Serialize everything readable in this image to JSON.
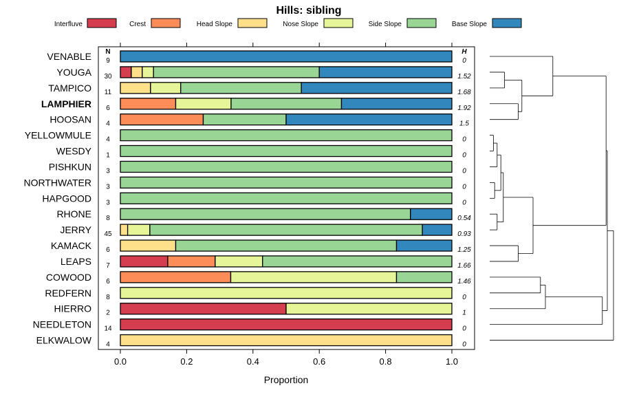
{
  "chart_data": {
    "type": "bar",
    "orientation": "horizontal",
    "stacked": true,
    "title": "Hills: sibling",
    "xlabel": "Proportion",
    "xlim": [
      0,
      1
    ],
    "xticks": [
      "0.0",
      "0.2",
      "0.4",
      "0.6",
      "0.8",
      "1.0"
    ],
    "xtick_values": [
      0,
      0.2,
      0.4,
      0.6,
      0.8,
      1.0
    ],
    "n_header": "N",
    "h_header": "H",
    "legend": [
      {
        "name": "Interfluve",
        "color": "#d53e4f"
      },
      {
        "name": "Crest",
        "color": "#fc8d59"
      },
      {
        "name": "Head Slope",
        "color": "#fee08b"
      },
      {
        "name": "Nose Slope",
        "color": "#e6f598"
      },
      {
        "name": "Side Slope",
        "color": "#99d594"
      },
      {
        "name": "Base Slope",
        "color": "#3288bd"
      }
    ],
    "highlight": "LAMPHIER",
    "rows": [
      {
        "label": "VENABLE",
        "n": "9",
        "h": "0",
        "values": [
          0,
          0,
          0,
          0,
          0,
          1
        ]
      },
      {
        "label": "YOUGA",
        "n": "30",
        "h": "1.52",
        "values": [
          0.033,
          0,
          0.033,
          0.034,
          0.5,
          0.4
        ]
      },
      {
        "label": "TAMPICO",
        "n": "11",
        "h": "1.68",
        "values": [
          0,
          0,
          0.091,
          0.091,
          0.364,
          0.454
        ]
      },
      {
        "label": "LAMPHIER",
        "n": "6",
        "h": "1.92",
        "values": [
          0,
          0.167,
          0,
          0.167,
          0.333,
          0.333
        ]
      },
      {
        "label": "HOOSAN",
        "n": "4",
        "h": "1.5",
        "values": [
          0,
          0.25,
          0,
          0,
          0.25,
          0.5
        ]
      },
      {
        "label": "YELLOWMULE",
        "n": "4",
        "h": "0",
        "values": [
          0,
          0,
          0,
          0,
          1,
          0
        ]
      },
      {
        "label": "WESDY",
        "n": "1",
        "h": "0",
        "values": [
          0,
          0,
          0,
          0,
          1,
          0
        ]
      },
      {
        "label": "PISHKUN",
        "n": "3",
        "h": "0",
        "values": [
          0,
          0,
          0,
          0,
          1,
          0
        ]
      },
      {
        "label": "NORTHWATER",
        "n": "3",
        "h": "0",
        "values": [
          0,
          0,
          0,
          0,
          1,
          0
        ]
      },
      {
        "label": "HAPGOOD",
        "n": "3",
        "h": "0",
        "values": [
          0,
          0,
          0,
          0,
          1,
          0
        ]
      },
      {
        "label": "RHONE",
        "n": "8",
        "h": "0.54",
        "values": [
          0,
          0,
          0,
          0,
          0.875,
          0.125
        ]
      },
      {
        "label": "JERRY",
        "n": "45",
        "h": "0.93",
        "values": [
          0,
          0,
          0.022,
          0.067,
          0.822,
          0.089
        ]
      },
      {
        "label": "KAMACK",
        "n": "6",
        "h": "1.25",
        "values": [
          0,
          0,
          0.167,
          0,
          0.666,
          0.167
        ]
      },
      {
        "label": "LEAPS",
        "n": "7",
        "h": "1.66",
        "values": [
          0.143,
          0.143,
          0,
          0.143,
          0.571,
          0
        ]
      },
      {
        "label": "COWOOD",
        "n": "6",
        "h": "1.46",
        "values": [
          0,
          0.333,
          0,
          0.5,
          0.167,
          0
        ]
      },
      {
        "label": "REDFERN",
        "n": "8",
        "h": "0",
        "values": [
          0,
          0,
          0,
          1,
          0,
          0
        ]
      },
      {
        "label": "HIERRO",
        "n": "2",
        "h": "1",
        "values": [
          0.5,
          0,
          0,
          0.5,
          0,
          0
        ]
      },
      {
        "label": "NEEDLETON",
        "n": "14",
        "h": "0",
        "values": [
          1,
          0,
          0,
          0,
          0,
          0
        ]
      },
      {
        "label": "ELKWALOW",
        "n": "4",
        "h": "0",
        "values": [
          0,
          0,
          1,
          0,
          0,
          0
        ]
      }
    ],
    "dendrogram": {
      "type": "hierarchical-clustering",
      "leaves_in_order": [
        "VENABLE",
        "YOUGA",
        "TAMPICO",
        "LAMPHIER",
        "HOOSAN",
        "YELLOWMULE",
        "WESDY",
        "PISHKUN",
        "NORTHWATER",
        "HAPGOOD",
        "RHONE",
        "JERRY",
        "KAMACK",
        "LEAPS",
        "COWOOD",
        "REDFERN",
        "HIERRO",
        "NEEDLETON",
        "ELKWALOW"
      ],
      "merges": [
        {
          "a": "YOUGA",
          "b": "TAMPICO",
          "height": 0.12
        },
        {
          "a": "LAMPHIER",
          "b": "HOOSAN",
          "height": 0.23
        },
        {
          "a": "YOUGA+TAMPICO",
          "b": "LAMPHIER+HOOSAN",
          "height": 0.26
        },
        {
          "a": "VENABLE",
          "b": "YOUGA+TAMPICO+LAMPHIER+HOOSAN",
          "height": 0.51
        },
        {
          "a": "YELLOWMULE",
          "b": "WESDY",
          "height": 0.03
        },
        {
          "a": "YELLOWMULE+WESDY",
          "b": "PISHKUN",
          "height": 0.06
        },
        {
          "a": "NORTHWATER",
          "b": "HAPGOOD",
          "height": 0.04
        },
        {
          "a": "YELLOWMULE+WESDY+PISHKUN",
          "b": "NORTHWATER+HAPGOOD",
          "height": 0.09
        },
        {
          "a": "RHONE",
          "b": "JERRY",
          "height": 0.06
        },
        {
          "a": "YELLOWMULE..HAPGOOD",
          "b": "RHONE+JERRY",
          "height": 0.11
        },
        {
          "a": "KAMACK",
          "b": "LEAPS",
          "height": 0.23
        },
        {
          "a": "YELLOWMULE..JERRY",
          "b": "KAMACK+LEAPS",
          "height": 0.35
        },
        {
          "a": "COWOOD",
          "b": "REDFERN",
          "height": 0.41
        },
        {
          "a": "COWOOD+REDFERN",
          "b": "HIERRO",
          "height": 0.45
        },
        {
          "a": "COWOOD+REDFERN+HIERRO",
          "b": "NEEDLETON",
          "height": 0.91
        },
        {
          "a": "VENABLE..HOOSAN",
          "b": "YELLOWMULE..LEAPS",
          "height": 0.94
        },
        {
          "a": "VENABLE..LEAPS",
          "b": "COWOOD..NEEDLETON",
          "height": 0.95
        },
        {
          "a": "VENABLE..NEEDLETON",
          "b": "ELKWALOW",
          "height": 1.0
        }
      ]
    }
  }
}
